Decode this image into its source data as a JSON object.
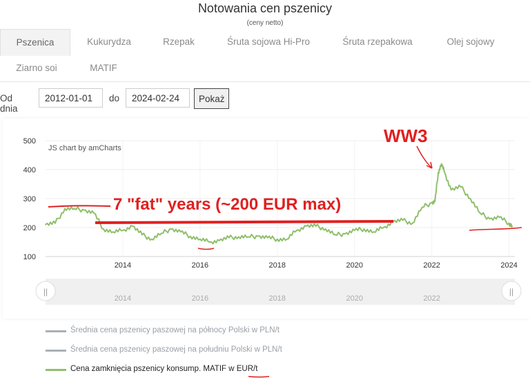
{
  "page": {
    "title": "Notowania cen pszenicy",
    "subtitle": "(ceny netto)"
  },
  "tabs": [
    {
      "label": "Pszenica",
      "active": true
    },
    {
      "label": "Kukurydza",
      "active": false
    },
    {
      "label": "Rzepak",
      "active": false
    },
    {
      "label": "Śruta sojowa Hi-Pro",
      "active": false
    },
    {
      "label": "Śruta rzepakowa",
      "active": false
    },
    {
      "label": "Olej sojowy",
      "active": false
    },
    {
      "label": "Ziarno soi",
      "active": false
    },
    {
      "label": "MATIF",
      "active": false
    }
  ],
  "filter": {
    "from_label": "Od dnia",
    "from_value": "2012-01-01",
    "to_label": "do",
    "to_value": "2024-02-24",
    "submit_label": "Pokaż"
  },
  "chart_data": {
    "type": "line",
    "credit": "JS chart by amCharts",
    "ylim": [
      100,
      500
    ],
    "y_ticks": [
      "100",
      "200",
      "300",
      "400",
      "500"
    ],
    "x_ticks": [
      "2014",
      "2016",
      "2018",
      "2020",
      "2022",
      "2024"
    ],
    "scrollbar_ticks": [
      "2014",
      "2016",
      "2018",
      "2020",
      "2022"
    ],
    "grid": true,
    "series": [
      {
        "name": "Cena zamknięcia pszenicy konsump. MATIF w EUR/t",
        "color": "#8fbf6b",
        "x": [
          "2012-01",
          "2012-04",
          "2012-07",
          "2012-10",
          "2013-01",
          "2013-04",
          "2013-07",
          "2013-10",
          "2014-01",
          "2014-04",
          "2014-07",
          "2014-10",
          "2015-01",
          "2015-04",
          "2015-07",
          "2015-10",
          "2016-01",
          "2016-04",
          "2016-07",
          "2016-10",
          "2017-01",
          "2017-04",
          "2017-07",
          "2017-10",
          "2018-01",
          "2018-04",
          "2018-07",
          "2018-10",
          "2019-01",
          "2019-04",
          "2019-07",
          "2019-10",
          "2020-01",
          "2020-04",
          "2020-07",
          "2020-10",
          "2021-01",
          "2021-04",
          "2021-07",
          "2021-10",
          "2022-01",
          "2022-02",
          "2022-03",
          "2022-04",
          "2022-05",
          "2022-07",
          "2022-10",
          "2023-01",
          "2023-04",
          "2023-07",
          "2023-10",
          "2024-01",
          "2024-02"
        ],
        "values": [
          210,
          215,
          265,
          265,
          260,
          250,
          195,
          185,
          190,
          205,
          175,
          160,
          180,
          195,
          185,
          170,
          160,
          150,
          155,
          165,
          168,
          168,
          170,
          165,
          160,
          160,
          190,
          205,
          205,
          195,
          175,
          178,
          190,
          195,
          185,
          200,
          220,
          225,
          215,
          270,
          285,
          290,
          390,
          420,
          390,
          330,
          340,
          300,
          250,
          230,
          235,
          215,
          205
        ]
      }
    ],
    "inactive_series": [
      {
        "name": "Średnia cena pszenicy paszowej na północy Polski w PLN/t",
        "color": "#a9b0b5"
      },
      {
        "name": "Średnia cena pszenicy paszowej na południu Polski w PLN/t",
        "color": "#a9b0b5"
      }
    ],
    "annotations": [
      {
        "text": "7 \"fat\" years (~200 EUR max)",
        "color": "#e02020"
      },
      {
        "text": "WW3",
        "color": "#e02020"
      }
    ]
  }
}
